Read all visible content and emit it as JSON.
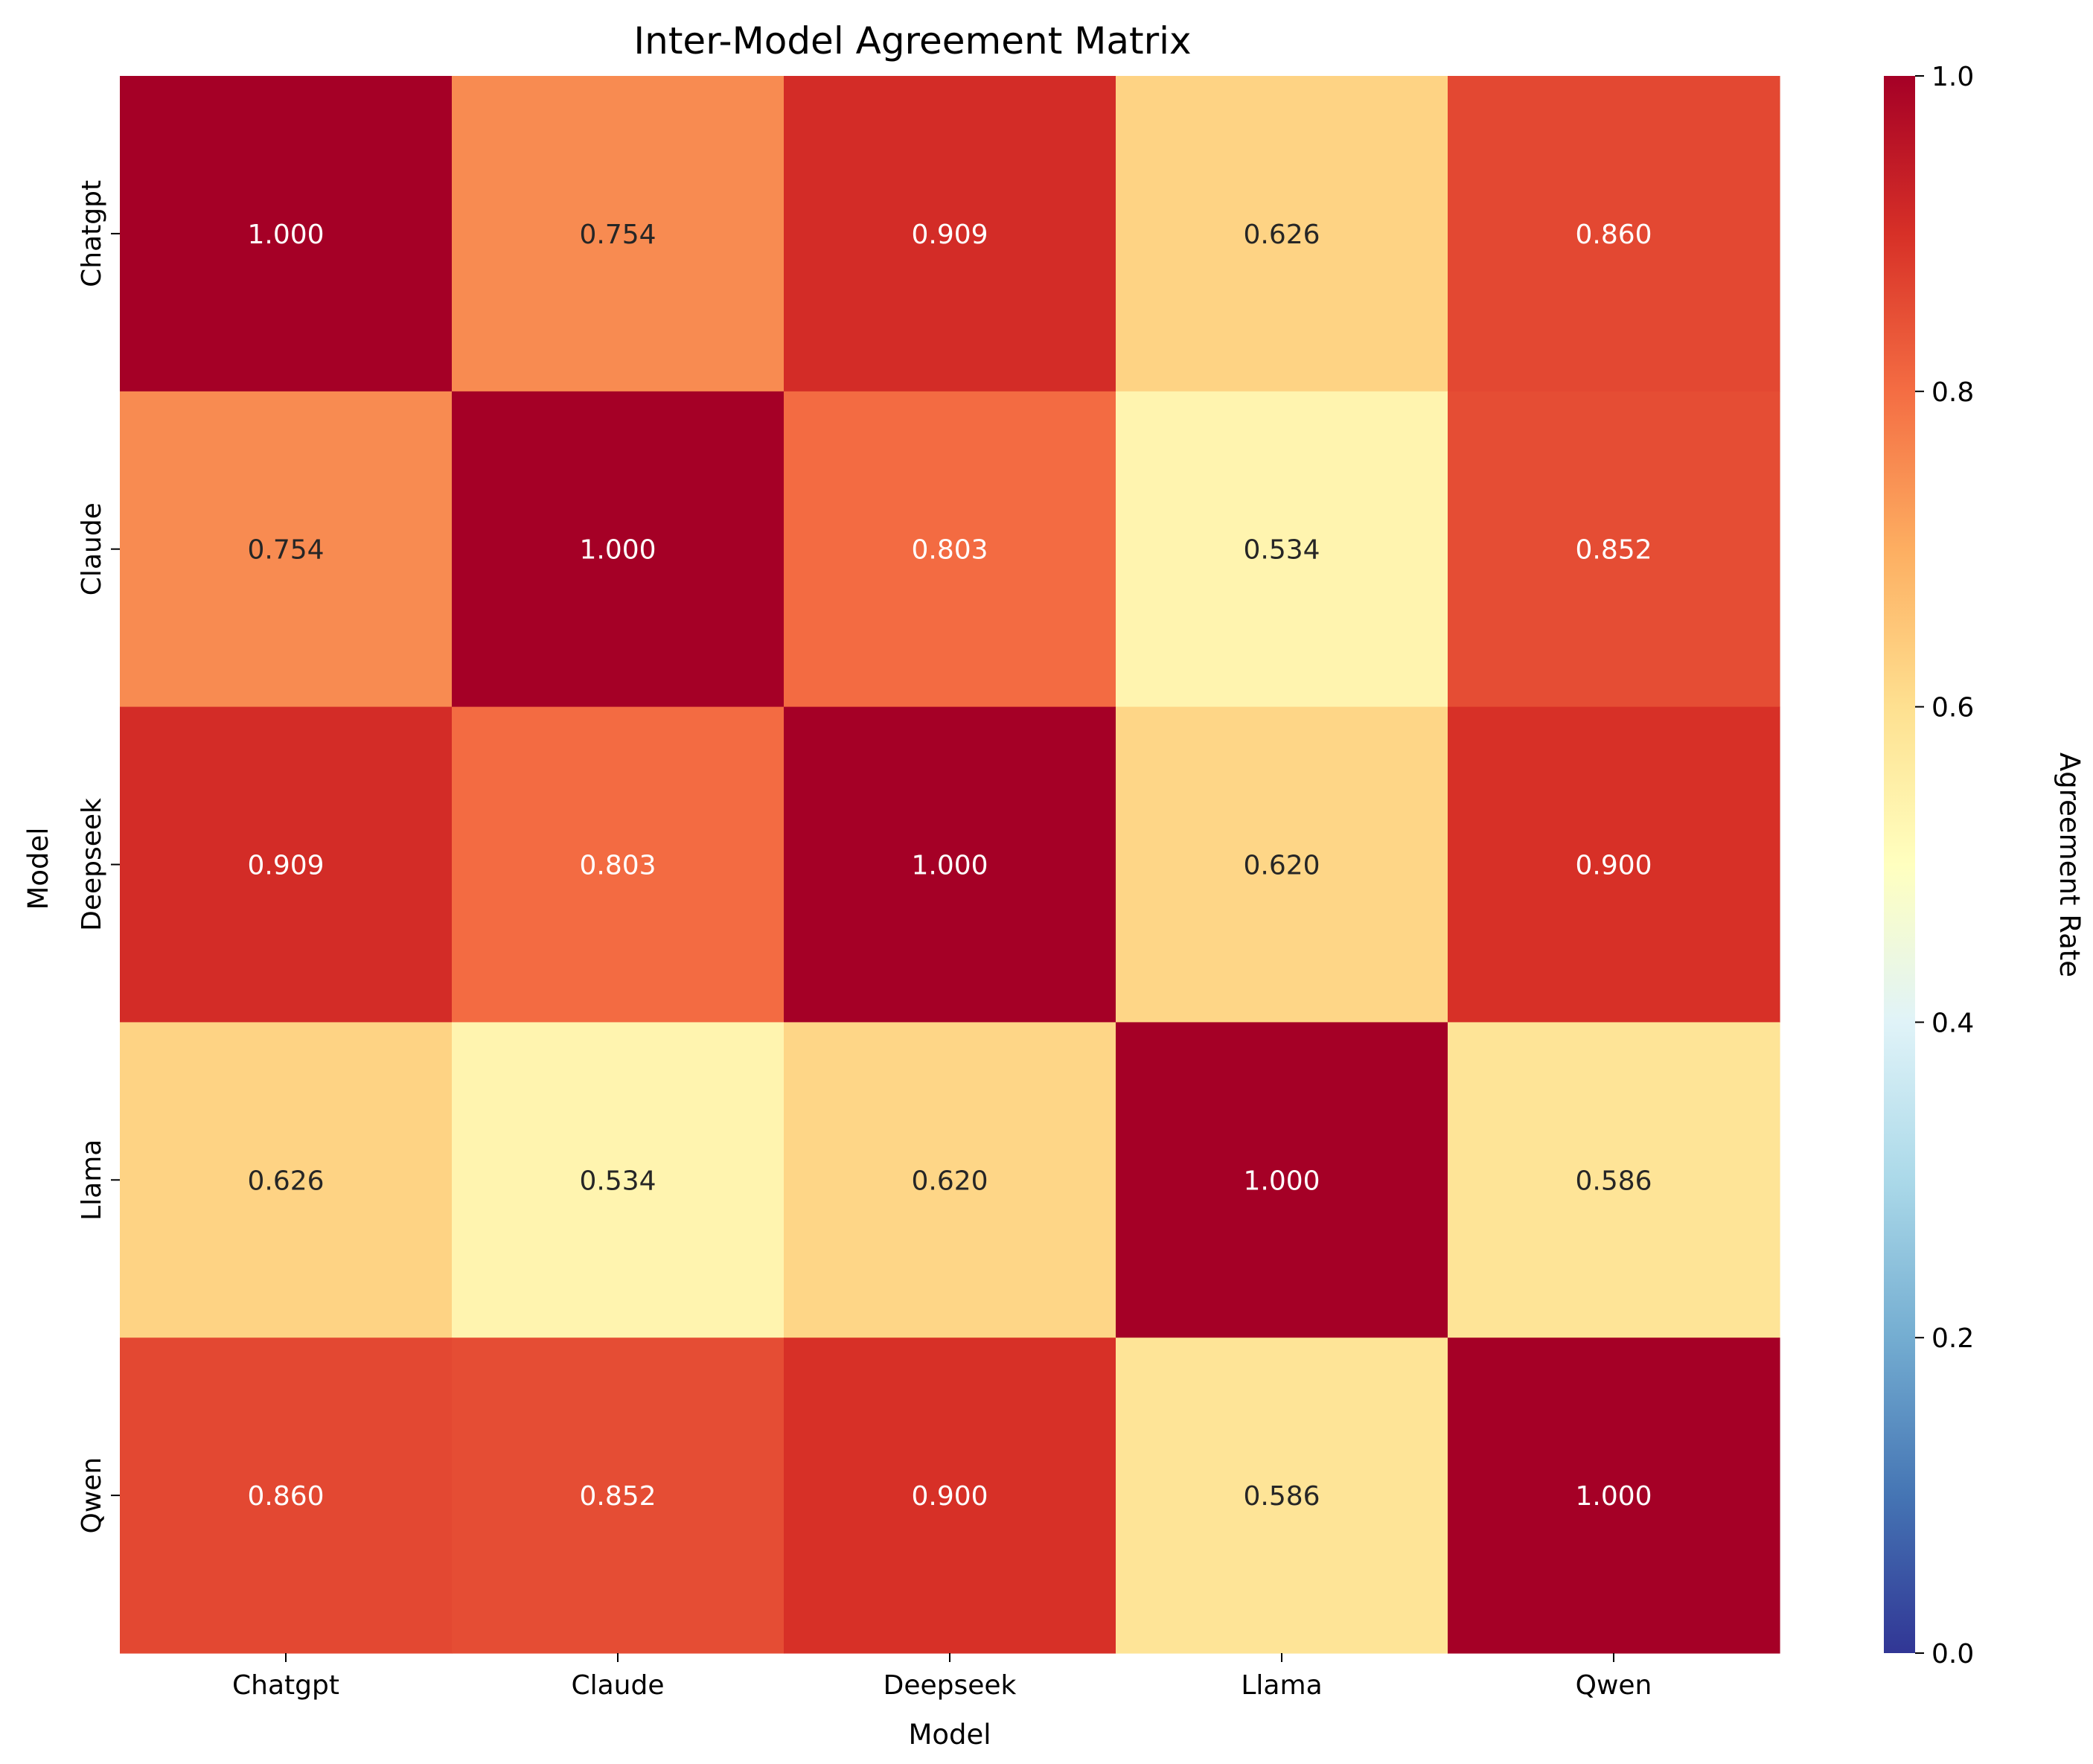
{
  "chart_data": {
    "type": "heatmap",
    "title": "Inter-Model Agreement Matrix",
    "xlabel": "Model",
    "ylabel": "Model",
    "x_categories": [
      "Chatgpt",
      "Claude",
      "Deepseek",
      "Llama",
      "Qwen"
    ],
    "y_categories": [
      "Chatgpt",
      "Claude",
      "Deepseek",
      "Llama",
      "Qwen"
    ],
    "values": [
      [
        1.0,
        0.754,
        0.909,
        0.626,
        0.86
      ],
      [
        0.754,
        1.0,
        0.803,
        0.534,
        0.852
      ],
      [
        0.909,
        0.803,
        1.0,
        0.62,
        0.9
      ],
      [
        0.626,
        0.534,
        0.62,
        1.0,
        0.586
      ],
      [
        0.86,
        0.852,
        0.9,
        0.586,
        1.0
      ]
    ],
    "value_format": "0.000",
    "colorbar": {
      "label": "Agreement Rate",
      "range": [
        0,
        1
      ],
      "ticks": [
        "0.0",
        "0.2",
        "0.4",
        "0.6",
        "0.8",
        "1.0"
      ],
      "colormap": "RdYlBu_r"
    },
    "colors": {
      "colormap_stops": [
        "#313695",
        "#4575b4",
        "#74add1",
        "#abd9e9",
        "#e0f3f8",
        "#ffffbf",
        "#fee090",
        "#fdae61",
        "#f46d43",
        "#d73027",
        "#a50026"
      ],
      "light_text": "#ffffff",
      "dark_text": "#262626"
    }
  }
}
